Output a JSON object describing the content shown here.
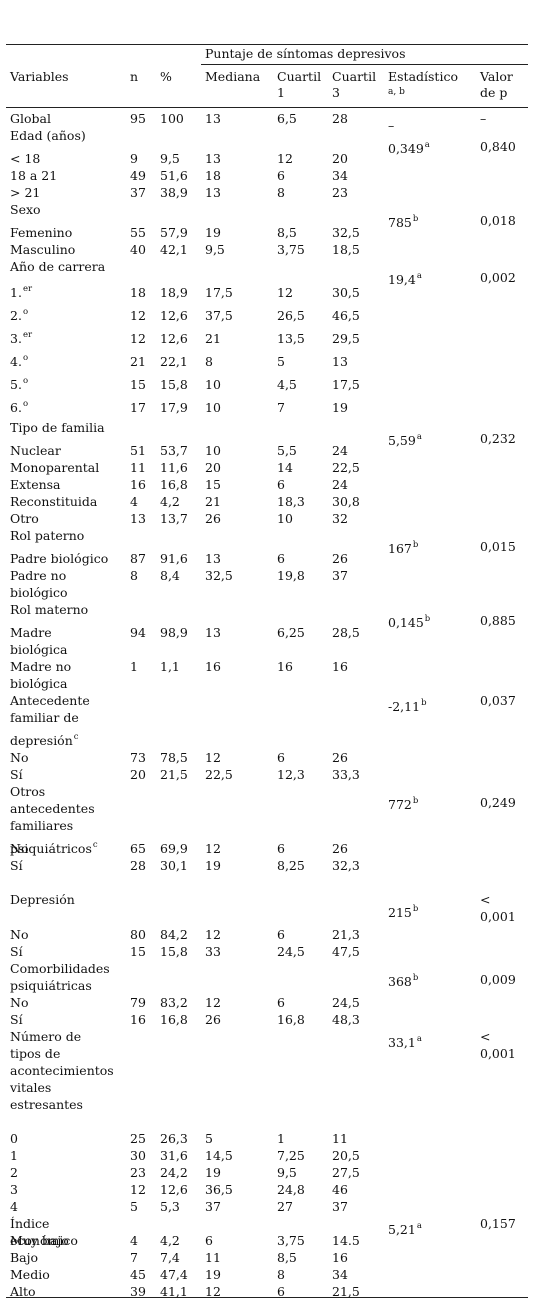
{
  "header": {
    "group_title": "Puntaje de síntomas depresivos",
    "variables": "Variables",
    "n": "n",
    "pct": "%",
    "mediana": "Mediana",
    "cuartil1": [
      "Cuartil",
      "1"
    ],
    "cuartil3": [
      "Cuartil",
      "3"
    ],
    "estadistico": "Estadístico",
    "estadistico_sub": "a, b",
    "valor_p": [
      "Valor",
      "de p"
    ]
  },
  "rows": [
    {
      "label": [
        "Global"
      ],
      "n": "95",
      "pct": "100",
      "med": "13",
      "q1": "6,5",
      "q3": "28",
      "stat": "–",
      "p": "–"
    },
    {
      "label": [
        "Edad (años)"
      ],
      "stat": "0,349",
      "stat_sup": "a",
      "p": "0,840",
      "statline": 1
    },
    {
      "label": [
        "< 18"
      ],
      "n": "9",
      "pct": "9,5",
      "med": "13",
      "q1": "12",
      "q3": "20"
    },
    {
      "label": [
        "18 a 21"
      ],
      "n": "49",
      "pct": "51,6",
      "med": "18",
      "q1": "6",
      "q3": "34"
    },
    {
      "label": [
        "> 21"
      ],
      "n": "37",
      "pct": "38,9",
      "med": "13",
      "q1": "8",
      "q3": "23"
    },
    {
      "label": [
        "Sexo"
      ],
      "stat": "785",
      "stat_sup": "b",
      "p": "0,018",
      "statline": 1
    },
    {
      "label": [
        "Femenino"
      ],
      "n": "55",
      "pct": "57,9",
      "med": "19",
      "q1": "8,5",
      "q3": "32,5"
    },
    {
      "label": [
        "Masculino"
      ],
      "n": "40",
      "pct": "42,1",
      "med": "9,5",
      "q1": "3,75",
      "q3": "18,5"
    },
    {
      "label": [
        "Año de carrera"
      ],
      "stat": "19,4",
      "stat_sup": "a",
      "p": "0,002",
      "statline": 1
    },
    {
      "label": [
        "1."
      ],
      "label_sup": "er",
      "n": "18",
      "pct": "18,9",
      "med": "17,5",
      "q1": "12",
      "q3": "30,5"
    },
    {
      "label": [
        "2."
      ],
      "label_sup": "o",
      "n": "12",
      "pct": "12,6",
      "med": "37,5",
      "q1": "26,5",
      "q3": "46,5"
    },
    {
      "label": [
        "3."
      ],
      "label_sup": "er",
      "n": "12",
      "pct": "12,6",
      "med": "21",
      "q1": "13,5",
      "q3": "29,5"
    },
    {
      "label": [
        "4."
      ],
      "label_sup": "o",
      "n": "21",
      "pct": "22,1",
      "med": "8",
      "q1": "5",
      "q3": "13"
    },
    {
      "label": [
        "5."
      ],
      "label_sup": "o",
      "n": "15",
      "pct": "15,8",
      "med": "10",
      "q1": "4,5",
      "q3": "17,5"
    },
    {
      "label": [
        "6."
      ],
      "label_sup": "o",
      "n": "17",
      "pct": "17,9",
      "med": "10",
      "q1": "7",
      "q3": "19"
    },
    {
      "label": [
        "Tipo de familia"
      ],
      "stat": "5,59",
      "stat_sup": "a",
      "p": "0,232",
      "statline": 1
    },
    {
      "label": [
        "Nuclear"
      ],
      "n": "51",
      "pct": "53,7",
      "med": "10",
      "q1": "5,5",
      "q3": "24"
    },
    {
      "label": [
        "Monoparental"
      ],
      "n": "11",
      "pct": "11,6",
      "med": "20",
      "q1": "14",
      "q3": "22,5"
    },
    {
      "label": [
        "Extensa"
      ],
      "n": "16",
      "pct": "16,8",
      "med": "15",
      "q1": "6",
      "q3": "24"
    },
    {
      "label": [
        "Reconstituida"
      ],
      "n": "4",
      "pct": "4,2",
      "med": "21",
      "q1": "18,3",
      "q3": "30,8"
    },
    {
      "label": [
        "Otro"
      ],
      "n": "13",
      "pct": "13,7",
      "med": "26",
      "q1": "10",
      "q3": "32"
    },
    {
      "label": [
        "Rol paterno"
      ],
      "stat": "167",
      "stat_sup": "b",
      "p": "0,015",
      "statline": 1
    },
    {
      "label": [
        "Padre biológico"
      ],
      "n": "87",
      "pct": "91,6",
      "med": "13",
      "q1": "6",
      "q3": "26"
    },
    {
      "label": [
        "Padre no",
        "biológico"
      ],
      "n": "8",
      "pct": "8,4",
      "med": "32,5",
      "q1": "19,8",
      "q3": "37"
    },
    {
      "label": [
        "Rol materno"
      ],
      "stat": "0,145",
      "stat_sup": "b",
      "p": "0,885",
      "statline": 1
    },
    {
      "label": [
        "Madre",
        "biológica"
      ],
      "n": "94",
      "pct": "98,9",
      "med": "13",
      "q1": "6,25",
      "q3": "28,5"
    },
    {
      "label": [
        "Madre no",
        "biológica"
      ],
      "n": "1",
      "pct": "1,1",
      "med": "16",
      "q1": "16",
      "q3": "16"
    },
    {
      "label": [
        "Antecedente",
        "familiar de",
        "depresión"
      ],
      "label_sup": "c",
      "stat": "-2,11",
      "stat_sup": "b",
      "p": "0,037",
      "statline": 0
    },
    {
      "label": [
        "No"
      ],
      "n": "73",
      "pct": "78,5",
      "med": "12",
      "q1": "6",
      "q3": "26"
    },
    {
      "label": [
        "Sí"
      ],
      "n": "20",
      "pct": "21,5",
      "med": "22,5",
      "q1": "12,3",
      "q3": "33,3"
    },
    {
      "label": [
        "Otros",
        "antecedentes",
        "familiares",
        "psiquiátricos"
      ],
      "label_sup": "c",
      "stat": "772",
      "stat_sup": "b",
      "p": "0,249",
      "statline": 1
    },
    {
      "label": [
        "No"
      ],
      "n": "65",
      "pct": "69,9",
      "med": "12",
      "q1": "6",
      "q3": "26"
    },
    {
      "label": [
        "Sí"
      ],
      "n": "28",
      "pct": "30,1",
      "med": "19",
      "q1": "8,25",
      "q3": "32,3"
    },
    {
      "label": [
        "Depresión"
      ],
      "stat": "215",
      "stat_sup": "b",
      "p": [
        "<",
        "0,001"
      ],
      "statline": 1
    },
    {
      "label": [
        "No"
      ],
      "n": "80",
      "pct": "84,2",
      "med": "12",
      "q1": "6",
      "q3": "21,3"
    },
    {
      "label": [
        "Sí"
      ],
      "n": "15",
      "pct": "15,8",
      "med": "33",
      "q1": "24,5",
      "q3": "47,5"
    },
    {
      "label": [
        "Comorbilidades",
        " psiquiátricas"
      ],
      "stat": "368",
      "stat_sup": "b",
      "p": "0,009",
      "statline": 1
    },
    {
      "label": [
        "No"
      ],
      "n": "79",
      "pct": "83,2",
      "med": "12",
      "q1": "6",
      "q3": "24,5"
    },
    {
      "label": [
        "Sí"
      ],
      "n": "16",
      "pct": "16,8",
      "med": "26",
      "q1": "16,8",
      "q3": "48,3"
    },
    {
      "label": [
        "Número de",
        "tipos de",
        "acontecimientos",
        " vitales",
        "estresantes"
      ],
      "stat": "33,1",
      "stat_sup": "a",
      "p": [
        "<",
        "0,001"
      ],
      "statline": 0
    },
    {
      "label": [
        "0"
      ],
      "n": "25",
      "pct": "26,3",
      "med": "5",
      "q1": "1",
      "q3": "11"
    },
    {
      "label": [
        "1"
      ],
      "n": "30",
      "pct": "31,6",
      "med": "14,5",
      "q1": "7,25",
      "q3": "20,5"
    },
    {
      "label": [
        "2"
      ],
      "n": "23",
      "pct": "24,2",
      "med": "19",
      "q1": "9,5",
      "q3": "27,5"
    },
    {
      "label": [
        "3"
      ],
      "n": "12",
      "pct": "12,6",
      "med": "36,5",
      "q1": "24,8",
      "q3": "46"
    },
    {
      "label": [
        "4"
      ],
      "n": "5",
      "pct": "5,3",
      "med": "37",
      "q1": "27",
      "q3": "37"
    },
    {
      "label": [
        "Índice",
        "económico"
      ],
      "stat": "5,21",
      "stat_sup": "a",
      "p": "0,157",
      "statline": 0
    },
    {
      "label": [
        "Muy bajo"
      ],
      "n": "4",
      "pct": "4,2",
      "med": "6",
      "q1": "3,75",
      "q3": "14.5"
    },
    {
      "label": [
        "Bajo"
      ],
      "n": "7",
      "pct": "7,4",
      "med": "11",
      "q1": "8,5",
      "q3": "16"
    },
    {
      "label": [
        "Medio"
      ],
      "n": "45",
      "pct": "47,4",
      "med": "19",
      "q1": "8",
      "q3": "34"
    },
    {
      "label": [
        "Alto"
      ],
      "n": "39",
      "pct": "41,1",
      "med": "12",
      "q1": "6",
      "q3": "21,5"
    }
  ]
}
